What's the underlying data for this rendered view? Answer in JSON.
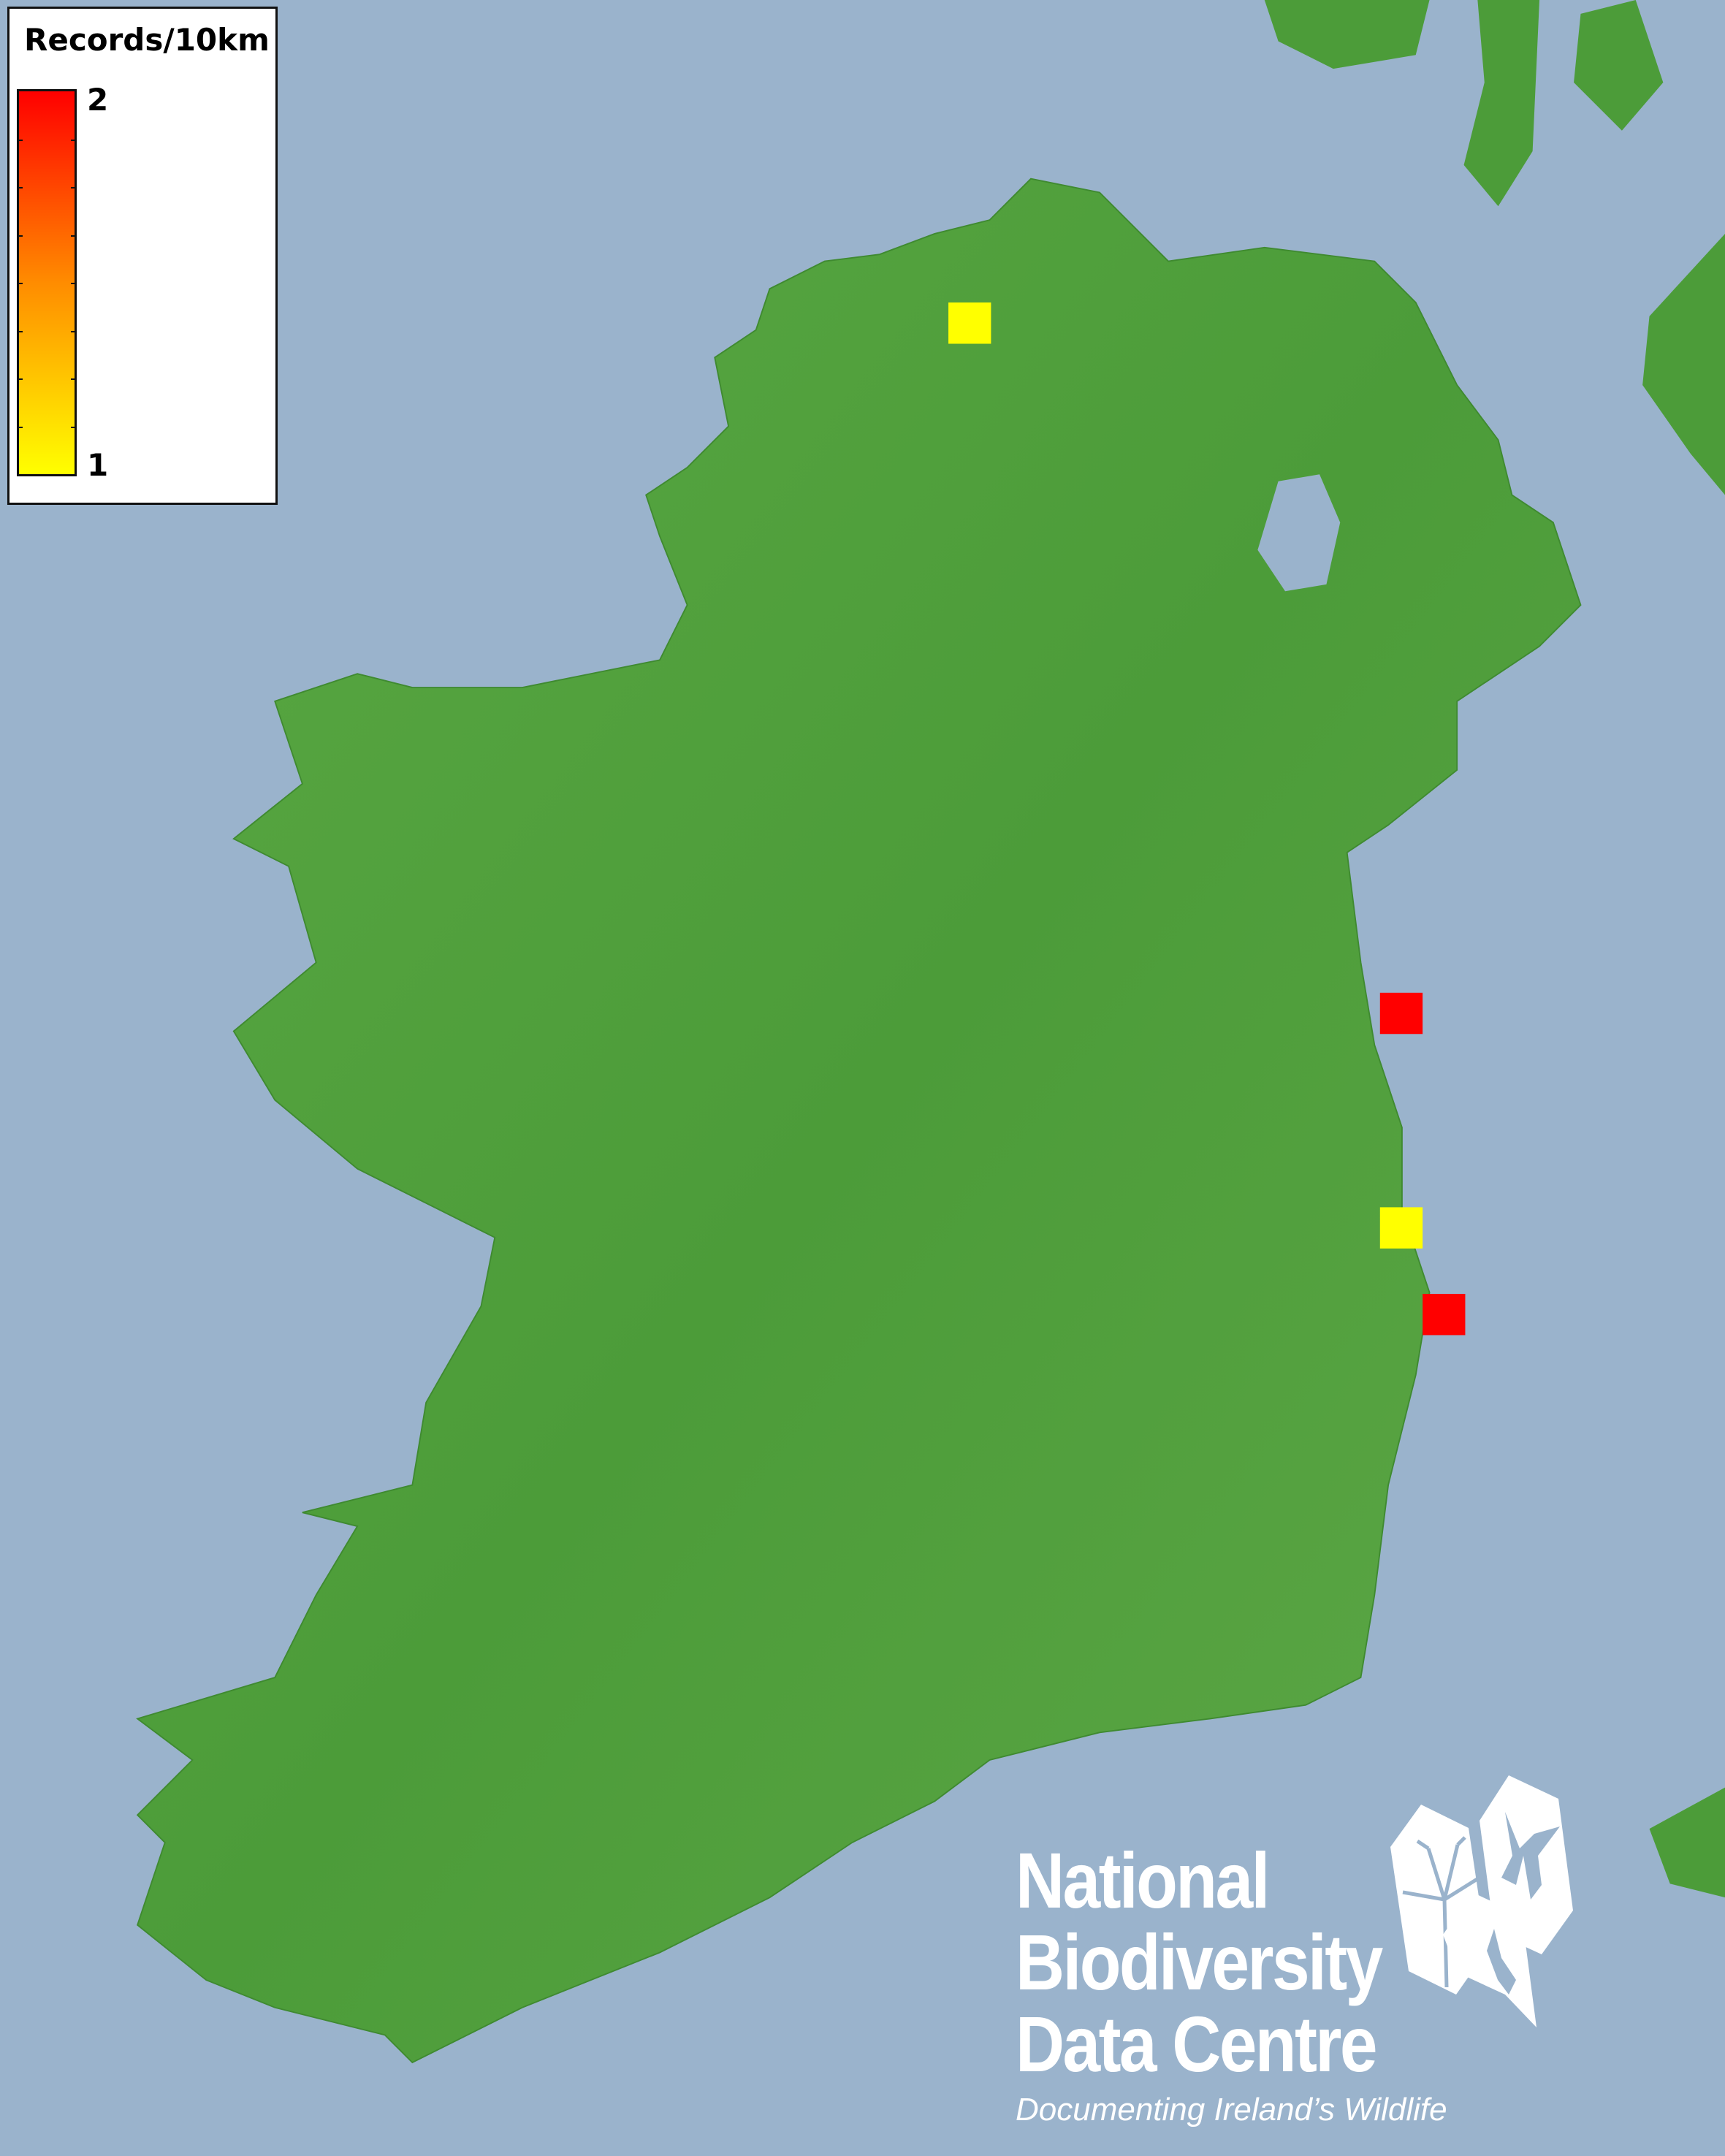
{
  "legend": {
    "title": "Records/10km",
    "max_label": "2",
    "min_label": "1",
    "color_low": "#ffff00",
    "color_high": "#ff0000"
  },
  "colors": {
    "sea": "#9ab3cc",
    "land": "#4a9e3a",
    "square_low": "#ffff00",
    "square_high": "#ff0000"
  },
  "records": [
    {
      "location": "north Donegal",
      "count": 1
    },
    {
      "location": "east coast, north of Dublin",
      "count": 2
    },
    {
      "location": "east coast, Wicklow",
      "count": 1
    },
    {
      "location": "east coast, Wicklow south",
      "count": 2
    }
  ],
  "logo": {
    "line1": "National",
    "line2": "Biodiversity",
    "line3": "Data Centre",
    "tagline": "Documenting Ireland’s Wildlife",
    "icons": [
      "tree-icon",
      "butterfly-icon",
      "seahorse-icon"
    ]
  }
}
